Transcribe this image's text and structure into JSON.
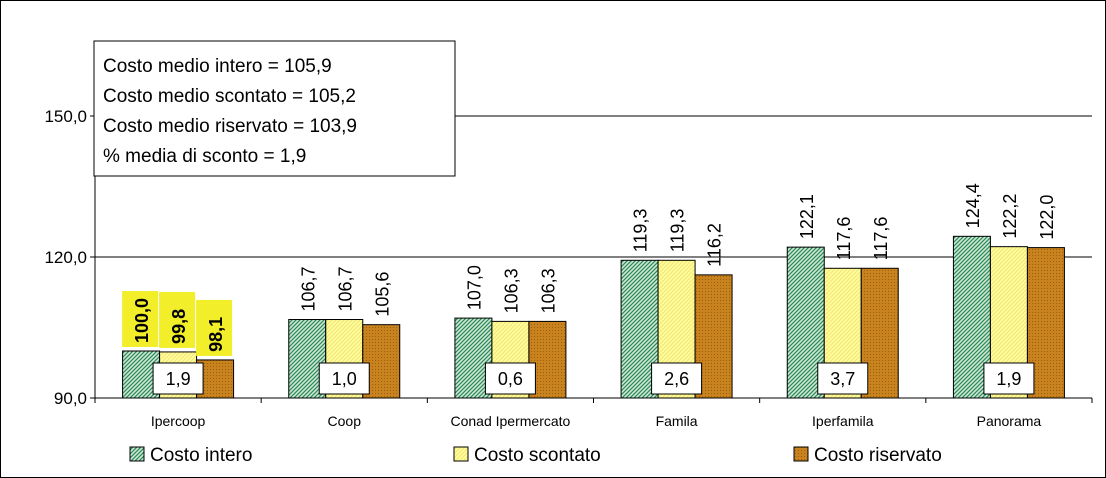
{
  "chart_data": {
    "type": "bar",
    "categories": [
      "Ipercoop",
      "Coop",
      "Conad Ipermercato",
      "Famila",
      "Iperfamila",
      "Panorama"
    ],
    "series": [
      {
        "name": "Costo intero",
        "values": [
          100.0,
          106.7,
          107.0,
          119.3,
          122.1,
          124.4
        ],
        "labels": [
          "100,0",
          "106,7",
          "107,0",
          "119,3",
          "122,1",
          "124,4"
        ],
        "color": "#2e8b57",
        "pattern": "diagonal-hatch"
      },
      {
        "name": "Costo scontato",
        "values": [
          99.8,
          106.7,
          106.3,
          119.3,
          117.6,
          122.2
        ],
        "labels": [
          "99,8",
          "106,7",
          "106,3",
          "119,3",
          "117,6",
          "122,2"
        ],
        "color": "#ffff99",
        "pattern": "diagonal-hatch"
      },
      {
        "name": "Costo riservato",
        "values": [
          98.1,
          105.6,
          106.3,
          116.2,
          117.6,
          122.0
        ],
        "labels": [
          "98,1",
          "105,6",
          "106,3",
          "116,2",
          "117,6",
          "122,0"
        ],
        "color": "#c8821e",
        "pattern": "dotted"
      }
    ],
    "discount_labels": [
      "1,9",
      "1,0",
      "0,6",
      "2,6",
      "3,7",
      "1,9"
    ],
    "highlighted_category": "Ipercoop",
    "highlight_color": "#f2ee2a",
    "y_ticks": [
      90,
      120,
      150
    ],
    "y_tick_labels": [
      "90,0",
      "120,0",
      "150,0"
    ],
    "ylim": [
      90,
      178
    ],
    "grid": true,
    "legend_position": "bottom",
    "summary_box": [
      "Costo medio intero = 105,9",
      "Costo medio scontato = 105,2",
      "Costo medio riservato = 103,9",
      "% media di sconto = 1,9"
    ]
  }
}
